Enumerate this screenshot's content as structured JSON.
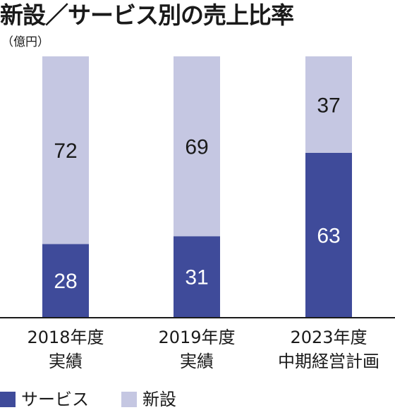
{
  "title": "新設／サービス別の売上比率",
  "unit": "（億円）",
  "colors": {
    "service": "#3f4b9a",
    "new": "#c5c7e2",
    "axis": "#1a1a1a"
  },
  "chart_data": {
    "type": "bar",
    "stacked": true,
    "title": "新設／サービス別の売上比率",
    "unit": "億円",
    "categories": [
      [
        "2018年度",
        "実績"
      ],
      [
        "2019年度",
        "実績"
      ],
      [
        "2023年度",
        "中期経営計画"
      ]
    ],
    "series": [
      {
        "name": "サービス",
        "values": [
          28,
          31,
          63
        ],
        "color": "#3f4b9a"
      },
      {
        "name": "新設",
        "values": [
          72,
          69,
          37
        ],
        "color": "#c5c7e2"
      }
    ],
    "ylim": [
      0,
      100
    ],
    "grid": false,
    "legend": "bottom-left"
  },
  "legend": {
    "service": "サービス",
    "new": "新設"
  }
}
